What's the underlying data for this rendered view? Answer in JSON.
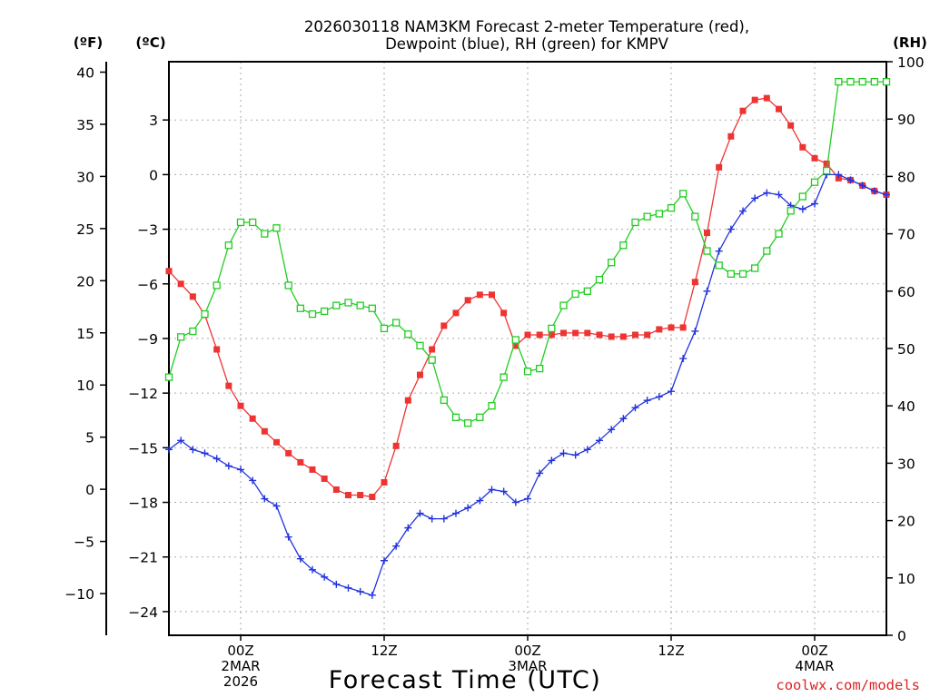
{
  "chart_data": {
    "type": "line",
    "title_line1": "2026030118 NAM3KM Forecast 2-meter Temperature (red),",
    "title_line2": "Dewpoint (blue), RH (green) for KMPV",
    "xlabel": "Forecast Time (UTC)",
    "credit": "coolwx.com/models",
    "x_unit": "forecast hour",
    "xlim": [
      0,
      60
    ],
    "x_ticks": [
      {
        "hour": 6,
        "lines": [
          "00Z",
          "2MAR",
          "2026"
        ]
      },
      {
        "hour": 18,
        "lines": [
          "12Z"
        ]
      },
      {
        "hour": 30,
        "lines": [
          "00Z",
          "3MAR"
        ]
      },
      {
        "hour": 42,
        "lines": [
          "12Z"
        ]
      },
      {
        "hour": 54,
        "lines": [
          "00Z",
          "4MAR"
        ]
      }
    ],
    "axis_f": {
      "label": "(ºF)",
      "lim": [
        -14,
        41
      ],
      "ticks": [
        -10,
        -5,
        0,
        5,
        10,
        15,
        20,
        25,
        30,
        35,
        40
      ]
    },
    "axis_c": {
      "label": "(ºC)",
      "lim": [
        -25.3,
        6.2
      ],
      "ticks": [
        -24,
        -21,
        -18,
        -15,
        -12,
        -9,
        -6,
        -3,
        0,
        3
      ]
    },
    "axis_rh": {
      "label": "(RH)",
      "lim": [
        0,
        100
      ],
      "ticks": [
        0,
        10,
        20,
        30,
        40,
        50,
        60,
        70,
        80,
        90,
        100
      ]
    },
    "series": [
      {
        "name": "2-meter Temperature",
        "unit": "C",
        "color": "#ee3333",
        "marker": "filled-square",
        "values": [
          -5.3,
          -6.0,
          -6.7,
          -7.7,
          -9.6,
          -11.6,
          -12.7,
          -13.4,
          -14.1,
          -14.7,
          -15.3,
          -15.8,
          -16.2,
          -16.7,
          -17.3,
          -17.6,
          -17.6,
          -17.7,
          -16.9,
          -14.9,
          -12.4,
          -11.0,
          -9.6,
          -8.3,
          -7.6,
          -6.9,
          -6.6,
          -6.6,
          -7.6,
          -9.4,
          -8.8,
          -8.8,
          -8.8,
          -8.7,
          -8.7,
          -8.7,
          -8.8,
          -8.9,
          -8.9,
          -8.8,
          -8.8,
          -8.5,
          -8.4,
          -8.4,
          -5.9,
          -3.2,
          0.4,
          2.1,
          3.5,
          4.1,
          4.2,
          3.6,
          2.7,
          1.5,
          0.9,
          0.6,
          -0.2,
          -0.3,
          -0.6,
          -0.9,
          -1.1
        ]
      },
      {
        "name": "Dewpoint",
        "unit": "C",
        "color": "#2233dd",
        "marker": "plus",
        "values": [
          -15.1,
          -14.6,
          -15.1,
          -15.3,
          -15.6,
          -16.0,
          -16.2,
          -16.8,
          -17.8,
          -18.2,
          -19.9,
          -21.1,
          -21.7,
          -22.1,
          -22.5,
          -22.7,
          -22.9,
          -23.1,
          -21.2,
          -20.4,
          -19.4,
          -18.6,
          -18.9,
          -18.9,
          -18.6,
          -18.3,
          -17.9,
          -17.3,
          -17.4,
          -18.0,
          -17.8,
          -16.4,
          -15.7,
          -15.3,
          -15.4,
          -15.1,
          -14.6,
          -14.0,
          -13.4,
          -12.8,
          -12.4,
          -12.2,
          -11.9,
          -10.1,
          -8.6,
          -6.4,
          -4.2,
          -3.0,
          -2.0,
          -1.3,
          -1.0,
          -1.1,
          -1.7,
          -1.9,
          -1.6,
          0.0,
          0.0,
          -0.3,
          -0.6,
          -0.9,
          -1.1
        ]
      },
      {
        "name": "RH",
        "unit": "%",
        "color": "#22cc22",
        "marker": "open-square",
        "values": [
          45,
          52,
          53,
          56,
          61,
          68,
          72,
          72,
          70,
          71,
          61,
          57,
          56,
          56.5,
          57.5,
          58,
          57.5,
          57,
          53.5,
          54.5,
          52.5,
          50.5,
          48,
          41,
          38,
          37,
          38,
          40,
          45,
          51.5,
          46,
          46.5,
          53.5,
          57.5,
          59.5,
          60,
          62,
          65,
          68,
          72,
          73,
          73.5,
          74.5,
          77,
          73,
          67,
          64.5,
          63,
          63,
          64,
          67,
          70,
          74,
          76.5,
          79,
          81,
          96.5,
          96.5,
          96.5,
          96.5,
          96.5
        ]
      }
    ]
  }
}
